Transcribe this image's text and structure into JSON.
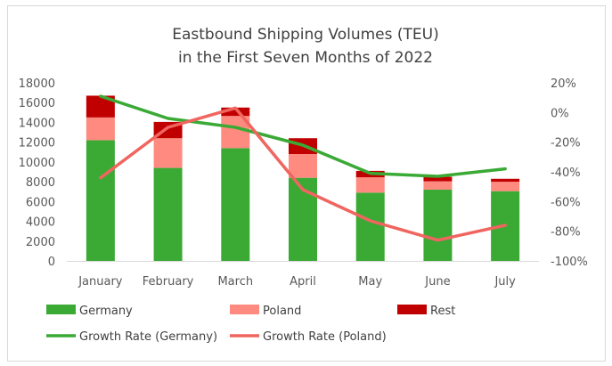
{
  "chart_data": {
    "type": "bar",
    "stacked": true,
    "title": [
      "Eastbound Shipping Volumes (TEU)",
      "in the First Seven Months of 2022"
    ],
    "categories": [
      "January",
      "February",
      "March",
      "April",
      "May",
      "June",
      "July"
    ],
    "series": [
      {
        "name": "Germany",
        "type": "bar",
        "axis": "left",
        "color": "#3aaa35",
        "values": [
          12200,
          9400,
          11400,
          8400,
          6900,
          7200,
          7050
        ]
      },
      {
        "name": "Poland",
        "type": "bar",
        "axis": "left",
        "color": "#ff8a80",
        "values": [
          2300,
          3000,
          3250,
          2400,
          1550,
          850,
          950
        ]
      },
      {
        "name": "Rest",
        "type": "bar",
        "axis": "left",
        "color": "#c00000",
        "values": [
          2200,
          1650,
          850,
          1600,
          650,
          450,
          300
        ]
      },
      {
        "name": "Growth Rate (Germany)",
        "type": "line",
        "axis": "right",
        "color": "#3aaa35",
        "values": [
          11,
          -4,
          -10,
          -22,
          -41,
          -43,
          -38
        ]
      },
      {
        "name": "Growth Rate (Poland)",
        "type": "line",
        "axis": "right",
        "color": "#f0655f",
        "values": [
          -44,
          -10,
          3,
          -52,
          -73,
          -86,
          -76
        ]
      }
    ],
    "y_left": {
      "min": 0,
      "max": 18000,
      "ticks": [
        "0",
        "2000",
        "4000",
        "6000",
        "8000",
        "10000",
        "12000",
        "14000",
        "16000",
        "18000"
      ]
    },
    "y_right": {
      "min": -100,
      "max": 20,
      "unit": "%",
      "ticks": [
        "-100%",
        "-80%",
        "-60%",
        "-40%",
        "-20%",
        "0%",
        "20%"
      ]
    },
    "grid": false,
    "legend": "bottom"
  }
}
